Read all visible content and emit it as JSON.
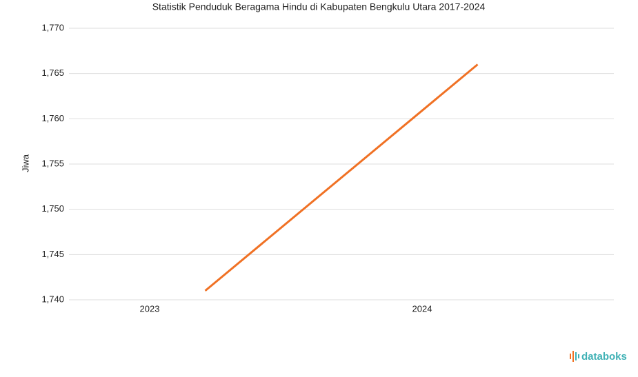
{
  "chart_data": {
    "type": "line",
    "title": "Statistik Penduduk Beragama Hindu di Kabupaten Bengkulu Utara 2017-2024",
    "y_label": "Jiwa",
    "categories": [
      "2023",
      "2024"
    ],
    "series": [
      {
        "name": "Jiwa",
        "color": "#f07124",
        "values": [
          1741,
          1766
        ]
      }
    ],
    "ylim": [
      1740,
      1770
    ],
    "yticks": [
      {
        "value": 1740,
        "label": "1,740"
      },
      {
        "value": 1745,
        "label": "1,745"
      },
      {
        "value": 1750,
        "label": "1,750"
      },
      {
        "value": 1755,
        "label": "1,755"
      },
      {
        "value": 1760,
        "label": "1,760"
      },
      {
        "value": 1765,
        "label": "1,765"
      },
      {
        "value": 1770,
        "label": "1,770"
      }
    ],
    "grid": true,
    "brand": "databoks"
  }
}
